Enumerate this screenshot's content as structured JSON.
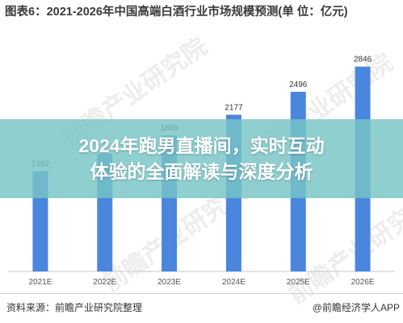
{
  "figure": {
    "title": "图表6：2021-2026年中国高端白酒行业市场规模预测(单 位：亿元)",
    "source": "资料来源：前瞻产业研究院整理",
    "brand": "@前瞻经济学人APP",
    "watermark": "前瞻产业研究院"
  },
  "banner": {
    "line1": "2024年跑男直播间，实时互动",
    "line2": "体验的全面解读与深度分析"
  },
  "colors": {
    "bar": "#4a86de",
    "banner": "#76c4c6"
  },
  "chart_data": {
    "type": "bar",
    "title": "图表6：2021-2026年中国高端白酒行业市场规模预测(单 位：亿元)",
    "categories": [
      "2021E",
      "2022E",
      "2023E",
      "2024E",
      "2025E",
      "2026E"
    ],
    "values": [
      1392,
      1636,
      1889,
      2177,
      2496,
      2846
    ],
    "data_labels": [
      "1392",
      "",
      "1889",
      "2177",
      "2496",
      "2846"
    ],
    "ylim": [
      0,
      3100
    ],
    "grid": false,
    "legend": "none"
  }
}
